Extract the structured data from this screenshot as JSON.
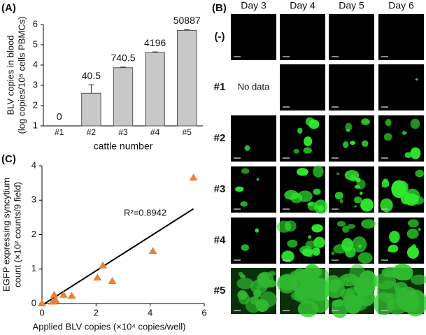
{
  "chart_data": [
    {
      "type": "bar",
      "label": "(A)",
      "ylabel": [
        "BLV copies in blood",
        "(log copies/10⁵ cells PBMCs)"
      ],
      "xlabel": "cattle number",
      "categories": [
        "#1",
        "#2",
        "#3",
        "#4",
        "#5"
      ],
      "values": [
        null,
        2.61,
        3.87,
        4.62,
        5.71
      ],
      "errors": [
        null,
        0.42,
        0.03,
        0.03,
        0.03
      ],
      "bar_labels": [
        0,
        40.5,
        740.5,
        4196,
        50887
      ],
      "color": "#c8c8c8",
      "ylim": [
        1,
        6
      ],
      "yticks": [
        1,
        2,
        3,
        4,
        5,
        6
      ]
    },
    {
      "type": "scatter",
      "label": "(C)",
      "ylabel": [
        "EGFP expressing syncytium",
        "count (×10² counts/9 field)"
      ],
      "xlabel": "Applied BLV copies (×10⁴ copies/well)",
      "x": [
        0,
        0.4,
        0.45,
        0.5,
        0.8,
        1.1,
        2.05,
        2.25,
        2.6,
        4.1,
        5.6
      ],
      "values": [
        0,
        0.05,
        0.25,
        0.1,
        0.25,
        0.22,
        0.75,
        1.1,
        0.65,
        1.52,
        3.65
      ],
      "color": "#e8823a",
      "trendline": {
        "x": [
          0,
          5.6
        ],
        "y": [
          -0.05,
          2.75
        ]
      },
      "annotation": "R²=0.8942",
      "xlim": [
        0,
        6
      ],
      "xticks": [
        0,
        2,
        4,
        6
      ],
      "ylim": [
        0,
        4
      ],
      "yticks": [
        0,
        1,
        2,
        3,
        4
      ]
    }
  ],
  "panel_b": {
    "label": "(B)",
    "columns": [
      "Day 3",
      "Day 4",
      "Day 5",
      "Day 6"
    ],
    "rows": [
      "(-)",
      "#1",
      "#2",
      "#3",
      "#4",
      "#5"
    ],
    "no_data": "No data"
  }
}
